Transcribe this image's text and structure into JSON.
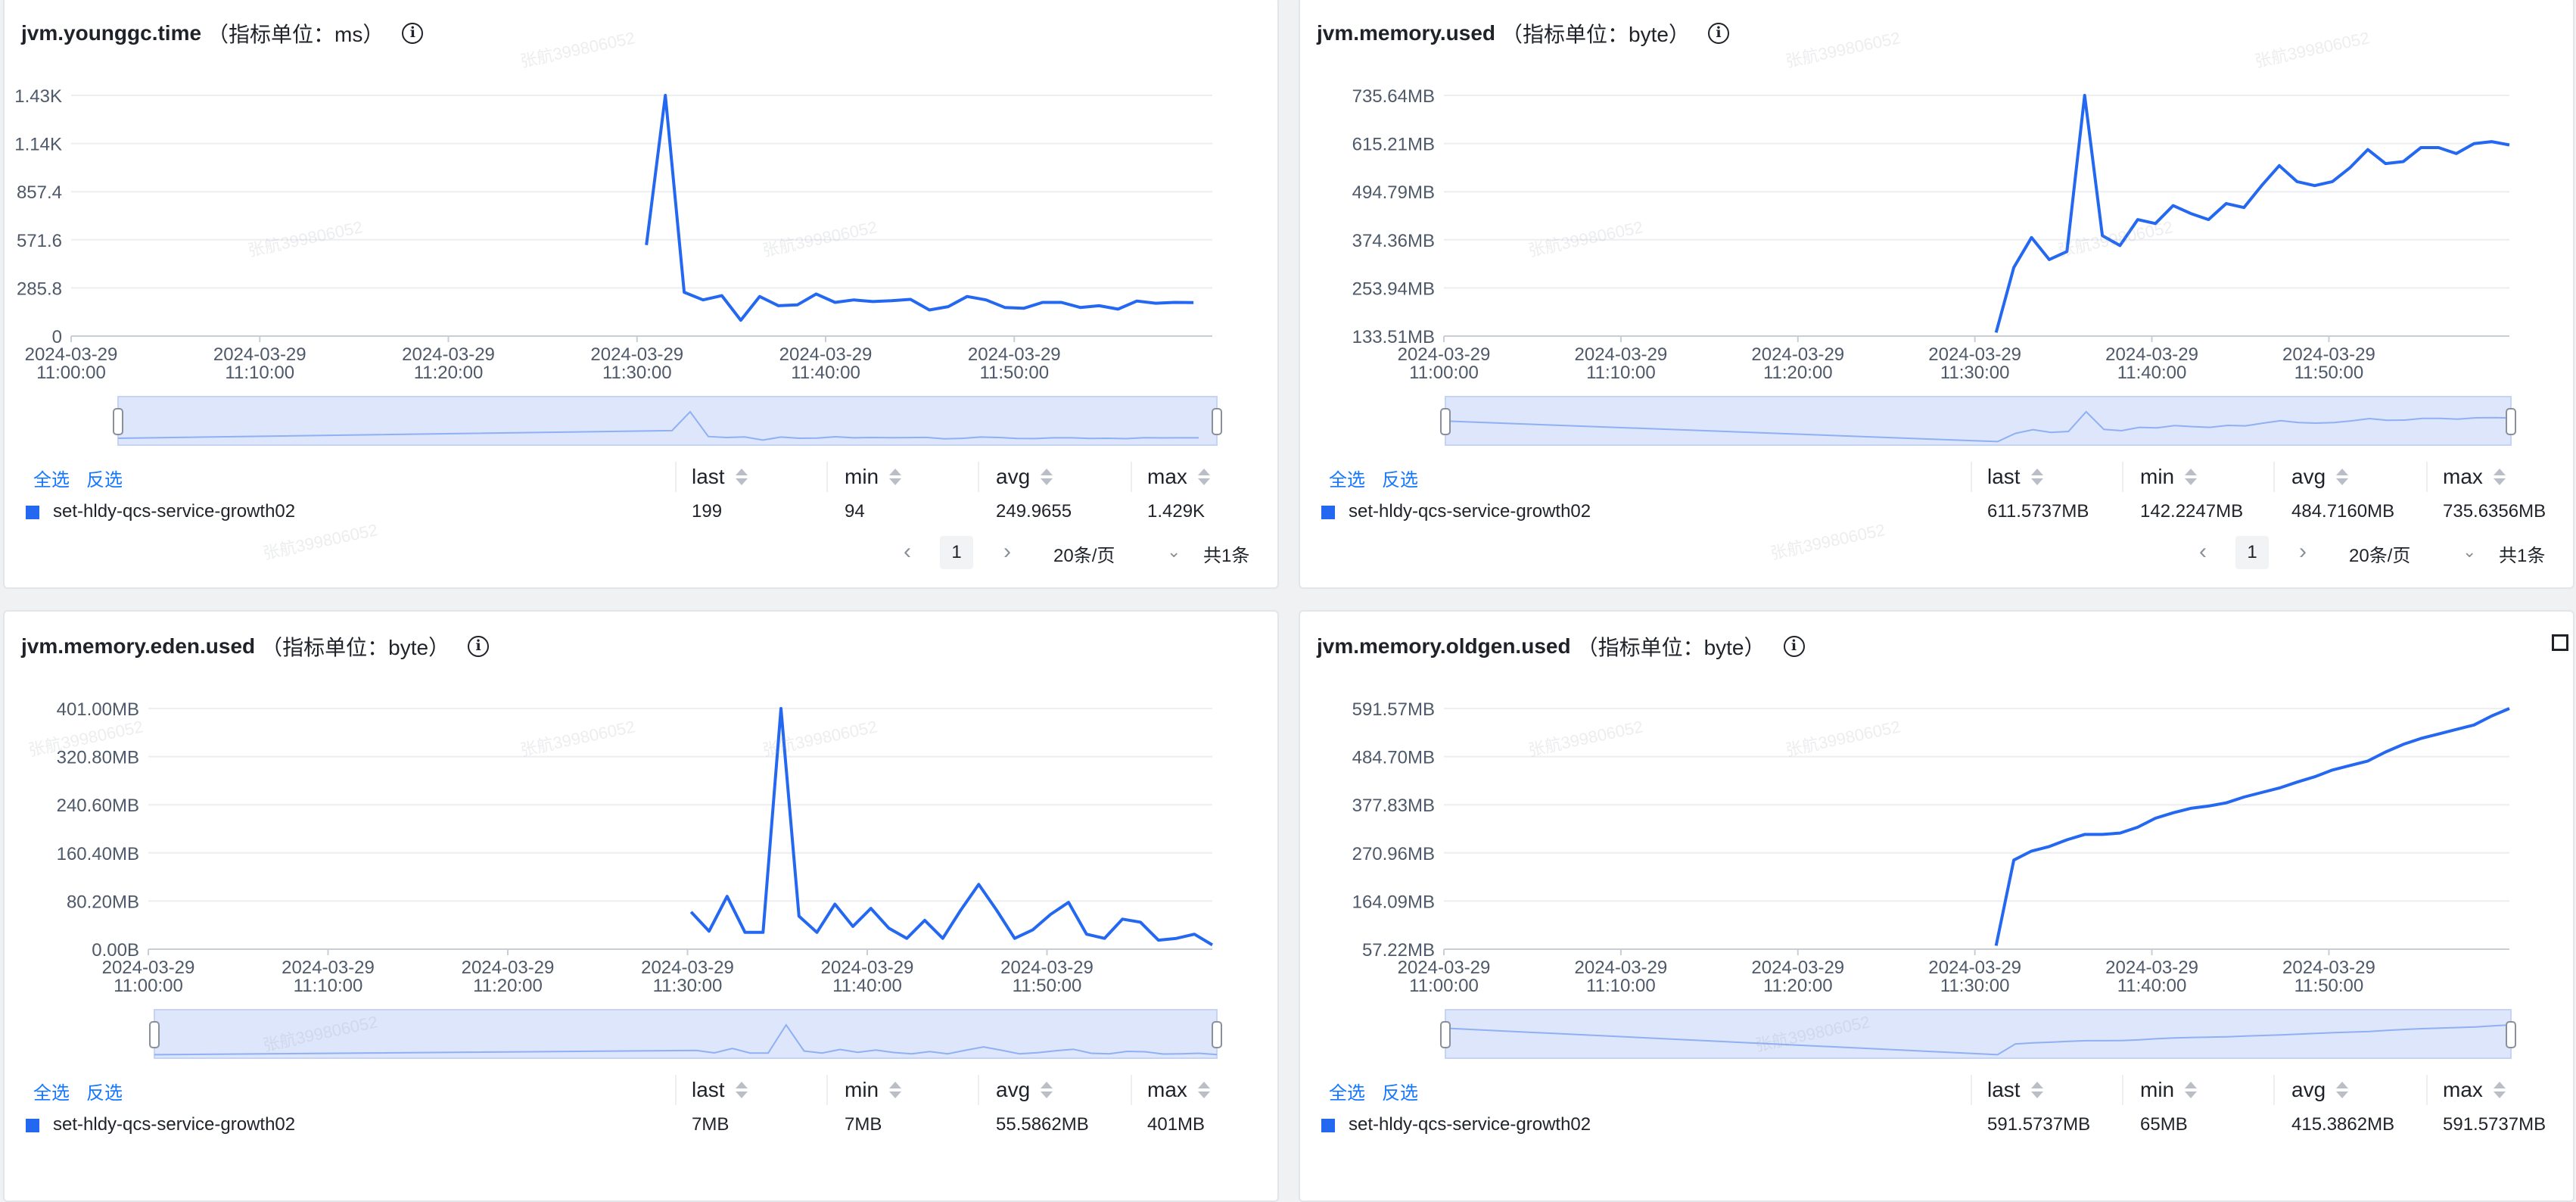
{
  "common": {
    "select_all": "全选",
    "invert": "反选",
    "col_last": "last",
    "col_min": "min",
    "col_avg": "avg",
    "col_max": "max",
    "series_name": "set-hldy-qcs-service-growth02",
    "page_current": "1",
    "page_size": "20条/页",
    "total": "共1条",
    "watermark": "张航399806052",
    "series_color": "#2468f2"
  },
  "panels": [
    {
      "metric": "jvm.younggc.time",
      "unit": "（指标单位：ms）",
      "stats": {
        "last": "199",
        "min": "94",
        "avg": "249.9655",
        "max": "1.429K"
      },
      "show_pager": true
    },
    {
      "metric": "jvm.memory.used",
      "unit": "（指标单位：byte）",
      "stats": {
        "last": "611.5737MB",
        "min": "142.2247MB",
        "avg": "484.7160MB",
        "max": "735.6356MB"
      },
      "show_pager": true
    },
    {
      "metric": "jvm.memory.eden.used",
      "unit": "（指标单位：byte）",
      "stats": {
        "last": "7MB",
        "min": "7MB",
        "avg": "55.5862MB",
        "max": "401MB"
      },
      "show_pager": false
    },
    {
      "metric": "jvm.memory.oldgen.used",
      "unit": "（指标单位：byte）",
      "stats": {
        "last": "591.5737MB",
        "min": "65MB",
        "avg": "415.3862MB",
        "max": "591.5737MB"
      },
      "show_pager": false
    }
  ],
  "chart_data": [
    {
      "type": "line",
      "title": "jvm.younggc.time",
      "x_ticks": [
        "2024-03-29 11:00:00",
        "2024-03-29 11:10:00",
        "2024-03-29 11:20:00",
        "2024-03-29 11:30:00",
        "2024-03-29 11:40:00",
        "2024-03-29 11:50:00"
      ],
      "y_ticks": [
        "0",
        "285.8",
        "571.6",
        "857.4",
        "1.14K",
        "1.43K"
      ],
      "ylim": [
        0,
        1429
      ],
      "x_minutes": [
        30.5,
        31.5,
        32.5,
        33.5,
        34.5,
        35.5,
        36.5,
        37.5,
        38.5,
        39.5,
        40.5,
        41.5,
        42.5,
        43.5,
        44.5,
        45.5,
        46.5,
        47.5,
        48.5,
        49.5,
        50.5,
        51.5,
        52.5,
        53.5,
        54.5,
        55.5,
        56.5,
        57.5,
        58.5,
        59.5
      ],
      "series": [
        {
          "name": "set-hldy-qcs-service-growth02",
          "values": [
            540,
            1429,
            260,
            215,
            240,
            94,
            235,
            180,
            185,
            250,
            200,
            215,
            205,
            210,
            218,
            155,
            175,
            235,
            215,
            170,
            165,
            200,
            200,
            170,
            180,
            160,
            208,
            195,
            200,
            199
          ]
        }
      ]
    },
    {
      "type": "line",
      "title": "jvm.memory.used",
      "x_ticks": [
        "2024-03-29 11:00:00",
        "2024-03-29 11:10:00",
        "2024-03-29 11:20:00",
        "2024-03-29 11:30:00",
        "2024-03-29 11:40:00",
        "2024-03-29 11:50:00"
      ],
      "y_ticks": [
        "133.51MB",
        "253.94MB",
        "374.36MB",
        "494.79MB",
        "615.21MB",
        "735.64MB"
      ],
      "ylim": [
        133.51,
        735.64
      ],
      "x_minutes": [
        31.2,
        32.2,
        33.2,
        34.2,
        35.2,
        36.2,
        37.2,
        38.2,
        39.2,
        40.2,
        41.2,
        42.2,
        43.2,
        44.2,
        45.2,
        46.2,
        47.2,
        48.2,
        49.2,
        50.2,
        51.2,
        52.2,
        53.2,
        54.2,
        55.2,
        56.2,
        57.2,
        58.2,
        59.2,
        60.2
      ],
      "series": [
        {
          "name": "set-hldy-qcs-service-growth02",
          "values": [
            142.22,
            305,
            380,
            325,
            345,
            735.64,
            385,
            360,
            425,
            415,
            460,
            440,
            425,
            465,
            455,
            510,
            560,
            520,
            510,
            520,
            555,
            600,
            565,
            570,
            605,
            605,
            590,
            615,
            620,
            611.57
          ]
        }
      ]
    },
    {
      "type": "line",
      "title": "jvm.memory.eden.used",
      "x_ticks": [
        "2024-03-29 11:00:00",
        "2024-03-29 11:10:00",
        "2024-03-29 11:20:00",
        "2024-03-29 11:30:00",
        "2024-03-29 11:40:00",
        "2024-03-29 11:50:00"
      ],
      "y_ticks": [
        "0.00B",
        "80.20MB",
        "160.40MB",
        "240.60MB",
        "320.80MB",
        "401.00MB"
      ],
      "ylim": [
        0,
        401
      ],
      "x_minutes": [
        30.2,
        31.2,
        32.2,
        33.2,
        34.2,
        35.2,
        36.2,
        37.2,
        38.2,
        39.2,
        40.2,
        41.2,
        42.2,
        43.2,
        44.2,
        45.2,
        46.2,
        47.2,
        48.2,
        49.2,
        50.2,
        51.2,
        52.2,
        53.2,
        54.2,
        55.2,
        56.2,
        57.2,
        58.2,
        59.2
      ],
      "series": [
        {
          "name": "set-hldy-qcs-service-growth02",
          "values": [
            62,
            30,
            88,
            28,
            28,
            401,
            55,
            28,
            75,
            38,
            68,
            35,
            18,
            48,
            18,
            65,
            108,
            65,
            18,
            32,
            58,
            78,
            25,
            18,
            50,
            45,
            15,
            18,
            25,
            7
          ]
        }
      ]
    },
    {
      "type": "line",
      "title": "jvm.memory.oldgen.used",
      "x_ticks": [
        "2024-03-29 11:00:00",
        "2024-03-29 11:10:00",
        "2024-03-29 11:20:00",
        "2024-03-29 11:30:00",
        "2024-03-29 11:40:00",
        "2024-03-29 11:50:00"
      ],
      "y_ticks": [
        "57.22MB",
        "164.09MB",
        "270.96MB",
        "377.83MB",
        "484.70MB",
        "591.57MB"
      ],
      "ylim": [
        57.22,
        591.57
      ],
      "x_minutes": [
        31.2,
        32.2,
        33.2,
        34.2,
        35.2,
        36.2,
        37.2,
        38.2,
        39.2,
        40.2,
        41.2,
        42.2,
        43.2,
        44.2,
        45.2,
        46.2,
        47.2,
        48.2,
        49.2,
        50.2,
        51.2,
        52.2,
        53.2,
        54.2,
        55.2,
        56.2,
        57.2,
        58.2,
        59.2,
        60.2
      ],
      "series": [
        {
          "name": "set-hldy-qcs-service-growth02",
          "values": [
            65,
            255,
            275,
            285,
            300,
            312,
            312,
            315,
            328,
            348,
            360,
            370,
            375,
            382,
            395,
            405,
            415,
            428,
            440,
            455,
            465,
            475,
            495,
            512,
            525,
            535,
            545,
            555,
            575,
            591.57
          ]
        }
      ]
    }
  ]
}
